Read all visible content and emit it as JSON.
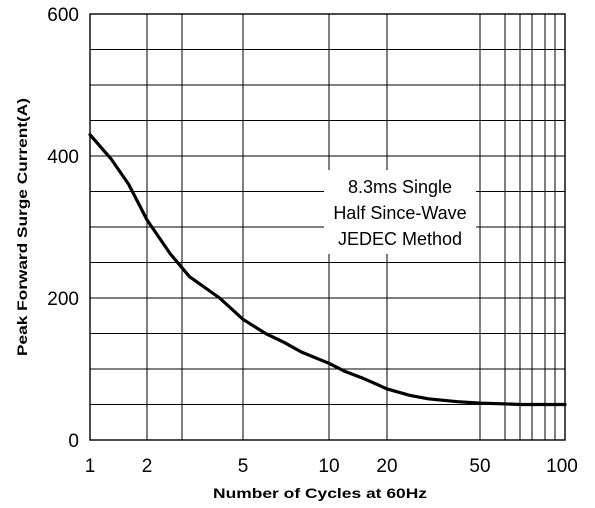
{
  "chart_data": {
    "type": "line",
    "title": "",
    "xlabel": "Number of Cycles at 60Hz",
    "ylabel": "Peak Forward Surge Current(A)",
    "x_scale": "piecewise",
    "ylim": [
      0,
      600
    ],
    "x_ticks": [
      {
        "label": "1"
      },
      {
        "label": "2"
      },
      {
        "label": "5"
      },
      {
        "label": "10"
      },
      {
        "label": "20"
      },
      {
        "label": "50"
      },
      {
        "label": "100"
      }
    ],
    "y_ticks": [
      {
        "value": 0,
        "label": "0"
      },
      {
        "value": 200,
        "label": "200"
      },
      {
        "value": 400,
        "label": "400"
      },
      {
        "value": 600,
        "label": "600"
      }
    ],
    "grid": true,
    "series": [
      {
        "name": "",
        "x": [
          1,
          1.3,
          1.6,
          2,
          2.5,
          3,
          4,
          5,
          6,
          7,
          8,
          10,
          12,
          15,
          20,
          25,
          30,
          40,
          50,
          60,
          70,
          80,
          90,
          100
        ],
        "y": [
          430,
          395,
          360,
          310,
          262,
          230,
          200,
          170,
          150,
          137,
          124,
          108,
          97,
          87,
          72,
          63,
          58,
          54,
          52,
          51,
          50,
          50,
          50,
          50
        ]
      }
    ],
    "annotation": [
      "8.3ms Single",
      "Half Since-Wave",
      "JEDEC Method"
    ]
  }
}
